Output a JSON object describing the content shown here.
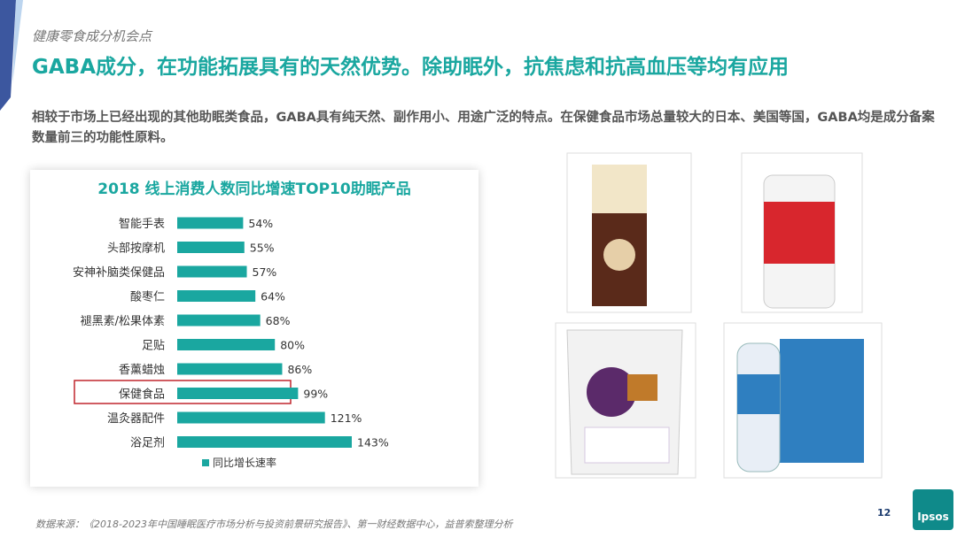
{
  "header": {
    "section": "健康零食成分机会点",
    "title": "GABA成分，在功能拓展具有的天然优势。除助眠外，抗焦虑和抗高血压等均有应用",
    "body": "相较于市场上已经出现的其他助眠类食品，GABA具有纯天然、副作用小、用途广泛的特点。在保健食品市场总量较大的日本、美国等国，GABA均是成分备案数量前三的功能性原料。"
  },
  "chart_data": {
    "type": "barh",
    "title": "2018 线上消费人数同比增速TOP10助眠产品",
    "categories": [
      "智能手表",
      "头部按摩机",
      "安神补脑类保健品",
      "酸枣仁",
      "褪黑素/松果体素",
      "足贴",
      "香薰蜡烛",
      "保健食品",
      "温灸器配件",
      "浴足剂"
    ],
    "series": [
      {
        "name": "同比增长速率",
        "color": "#1aa7a0",
        "values": [
          54,
          55,
          57,
          64,
          68,
          80,
          86,
          99,
          121,
          143
        ],
        "value_labels": [
          "54%",
          "55%",
          "57%",
          "64%",
          "68%",
          "80%",
          "86%",
          "99%",
          "121%",
          "143%"
        ]
      }
    ]
  },
  "footer": {
    "source": "数据来源：《2018-2023年中国睡眠医疗市场分析与投资前景研究报告》、第一财经数据中心，益普索整理分析",
    "page_number": "12",
    "logo": "Ipsos"
  }
}
